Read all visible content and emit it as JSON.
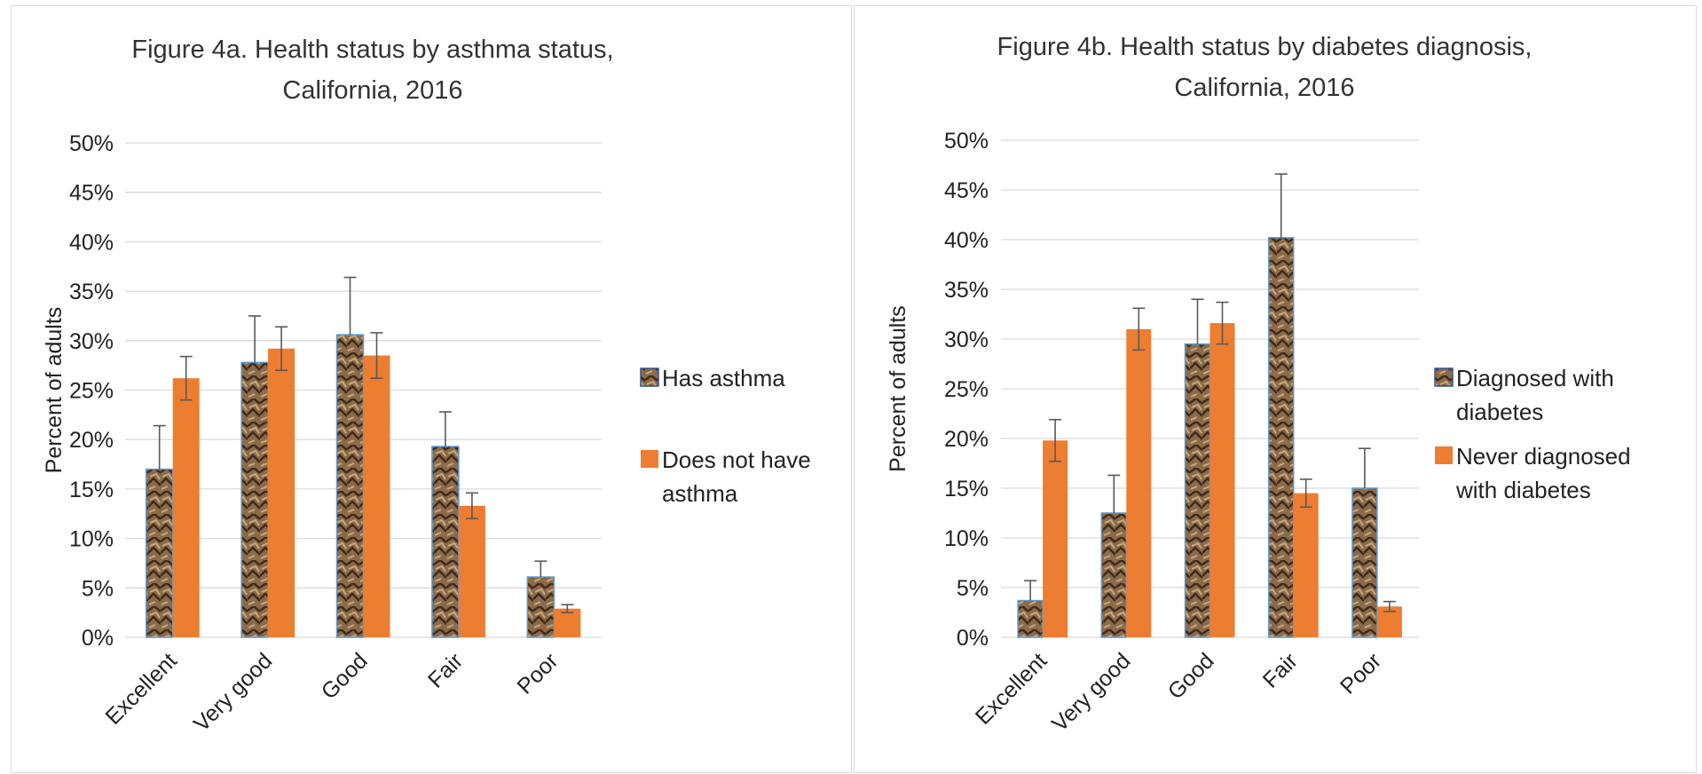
{
  "colors": {
    "series1_fill": "#8B6B4A",
    "series2_fill": "#ED7D31",
    "grid": "#D9D9D9",
    "error_bar": "#595959"
  },
  "chart_data": [
    {
      "type": "bar",
      "title_lines": [
        "Figure 4a. Health status by asthma status,",
        "California, 2016"
      ],
      "ylabel": "Percent of adults",
      "ylim": [
        0,
        0.5
      ],
      "ytick_labels": [
        "0%",
        "5%",
        "10%",
        "15%",
        "20%",
        "25%",
        "30%",
        "35%",
        "40%",
        "45%",
        "50%"
      ],
      "categories": [
        "Excellent",
        "Very good",
        "Good",
        "Fair",
        "Poor"
      ],
      "series": [
        {
          "name": "Has asthma",
          "legend_lines": [
            "Has asthma"
          ],
          "values": [
            0.17,
            0.278,
            0.306,
            0.193,
            0.061
          ],
          "err_upper": [
            0.214,
            0.325,
            0.364,
            0.228,
            0.077
          ]
        },
        {
          "name": "Does not have asthma",
          "legend_lines": [
            "Does not have",
            "asthma"
          ],
          "values": [
            0.262,
            0.292,
            0.285,
            0.133,
            0.029
          ],
          "err_upper": [
            0.284,
            0.314,
            0.308,
            0.146,
            0.033
          ],
          "err_lower": [
            0.24,
            0.27,
            0.262,
            0.12,
            0.025
          ]
        }
      ],
      "grid": true,
      "legend_position": "right"
    },
    {
      "type": "bar",
      "title_lines": [
        "Figure 4b. Health status by diabetes diagnosis,",
        "California, 2016"
      ],
      "ylabel": "Percent of adults",
      "ylim": [
        0,
        0.5
      ],
      "ytick_labels": [
        "0%",
        "5%",
        "10%",
        "15%",
        "20%",
        "25%",
        "30%",
        "35%",
        "40%",
        "45%",
        "50%"
      ],
      "categories": [
        "Excellent",
        "Very good",
        "Good",
        "Fair",
        "Poor"
      ],
      "series": [
        {
          "name": "Diagnosed with diabetes",
          "legend_lines": [
            "Diagnosed with",
            "diabetes"
          ],
          "values": [
            0.037,
            0.125,
            0.295,
            0.402,
            0.15
          ],
          "err_upper": [
            0.057,
            0.163,
            0.34,
            0.466,
            0.19
          ]
        },
        {
          "name": "Never diagnosed with diabetes",
          "legend_lines": [
            "Never diagnosed",
            "with diabetes"
          ],
          "values": [
            0.198,
            0.31,
            0.316,
            0.145,
            0.031
          ],
          "err_upper": [
            0.219,
            0.331,
            0.337,
            0.159,
            0.036
          ],
          "err_lower": [
            0.177,
            0.289,
            0.295,
            0.131,
            0.026
          ]
        }
      ],
      "grid": true,
      "legend_position": "right"
    }
  ]
}
